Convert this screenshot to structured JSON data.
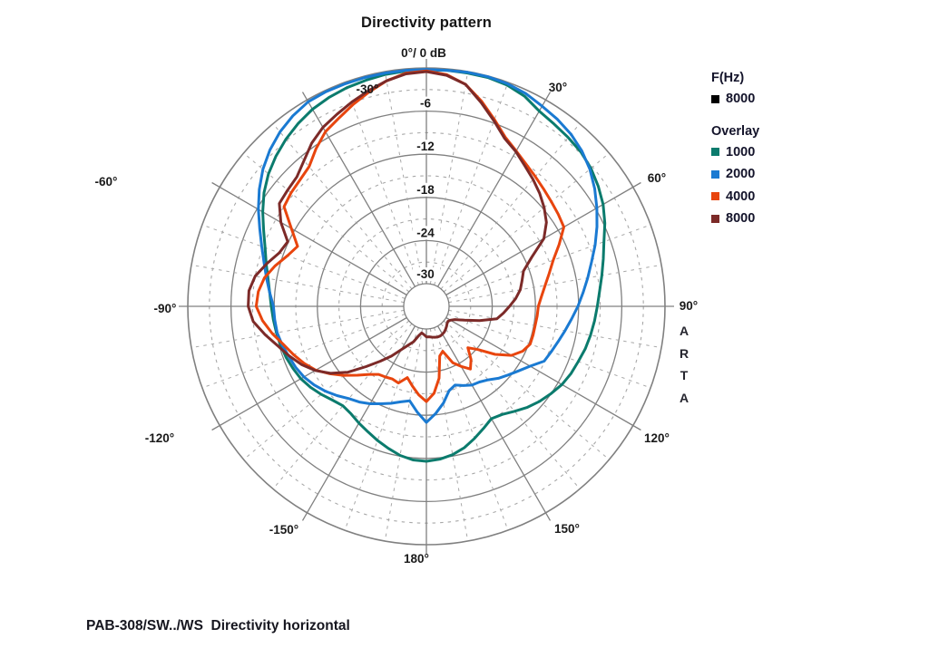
{
  "title": "Directivity pattern",
  "caption": "PAB-308/SW../WS  Directivity horizontal",
  "watermark": {
    "letters": [
      "A",
      "R",
      "T",
      "A"
    ]
  },
  "legend": {
    "freq_header": "F(Hz)",
    "freq_items": [
      {
        "label": "8000",
        "color": "#000000"
      }
    ],
    "overlay_header": "Overlay",
    "overlay_items": [
      {
        "label": "1000",
        "color": "#0b7b6d"
      },
      {
        "label": "2000",
        "color": "#1a7ad2"
      },
      {
        "label": "4000",
        "color": "#e8450e"
      },
      {
        "label": "8000",
        "color": "#7c2a28"
      }
    ]
  },
  "chart_data": {
    "type": "line",
    "projection": "polar",
    "title": "Directivity pattern",
    "top_label": "0°/ 0 dB",
    "units": "dB",
    "r_axis": {
      "max_db": 0,
      "min_db": -30,
      "solid_ring_step_db": 6,
      "dashed_ring_step_db": 3
    },
    "angle_grid": {
      "solid_step_deg": 30,
      "dashed_step_deg": 10
    },
    "radial_tick_labels": [
      {
        "db": -6,
        "label": "-6"
      },
      {
        "db": -12,
        "label": "-12"
      },
      {
        "db": -18,
        "label": "-18"
      },
      {
        "db": -24,
        "label": "-24"
      },
      {
        "db": -30,
        "label": "-30"
      }
    ],
    "angle_tick_labels": [
      {
        "angle": 0,
        "label": "0°/ 0 dB"
      },
      {
        "angle": 30,
        "label": "30°"
      },
      {
        "angle": 60,
        "label": "60°"
      },
      {
        "angle": 90,
        "label": "90°"
      },
      {
        "angle": 120,
        "label": "120°"
      },
      {
        "angle": 150,
        "label": "150°"
      },
      {
        "angle": 180,
        "label": "180°"
      },
      {
        "angle": -150,
        "label": "-150°"
      },
      {
        "angle": -120,
        "label": "-120°"
      },
      {
        "angle": -90,
        "label": "-90°"
      },
      {
        "angle": -60,
        "label": "-60°"
      },
      {
        "angle": -30,
        "label": "-30°"
      }
    ],
    "grid_colors": {
      "solid": "#808080",
      "dashed": "#a8a8a8"
    },
    "angles_deg": [
      -180,
      -175,
      -170,
      -165,
      -160,
      -155,
      -150,
      -145,
      -140,
      -135,
      -130,
      -125,
      -120,
      -115,
      -110,
      -105,
      -100,
      -95,
      -90,
      -85,
      -80,
      -75,
      -70,
      -65,
      -60,
      -55,
      -50,
      -45,
      -40,
      -35,
      -30,
      -25,
      -20,
      -15,
      -10,
      -5,
      0,
      5,
      10,
      15,
      20,
      25,
      30,
      35,
      40,
      45,
      50,
      55,
      60,
      65,
      70,
      75,
      80,
      85,
      90,
      95,
      100,
      105,
      110,
      115,
      120,
      125,
      130,
      135,
      140,
      145,
      150,
      155,
      160,
      165,
      170,
      175,
      180
    ],
    "series": [
      {
        "name": "1000",
        "color": "#0b7b6d",
        "values": [
          -11.6,
          -11.7,
          -12.1,
          -12.7,
          -13.3,
          -13.9,
          -14.4,
          -14.9,
          -15.1,
          -14.7,
          -14.1,
          -13.5,
          -13.0,
          -12.7,
          -12.4,
          -12.2,
          -12.0,
          -11.8,
          -11.6,
          -11.3,
          -10.8,
          -10.1,
          -9.3,
          -8.2,
          -6.9,
          -5.6,
          -4.5,
          -3.6,
          -2.8,
          -2.1,
          -1.5,
          -1.1,
          -0.8,
          -0.6,
          -0.4,
          -0.3,
          -0.3,
          -0.2,
          -0.2,
          -0.2,
          -0.4,
          -0.9,
          -1.8,
          -2.2,
          -2.5,
          -2.8,
          -3.3,
          -4.0,
          -4.8,
          -5.8,
          -6.9,
          -7.7,
          -8.4,
          -9.0,
          -9.4,
          -9.7,
          -10.0,
          -10.3,
          -10.7,
          -11.0,
          -11.4,
          -12.0,
          -12.6,
          -13.3,
          -14.1,
          -14.8,
          -15.1,
          -14.4,
          -13.6,
          -12.8,
          -12.2,
          -11.8,
          -11.6
        ]
      },
      {
        "name": "2000",
        "color": "#1a7ad2",
        "values": [
          -17.0,
          -18.4,
          -19.8,
          -19.4,
          -18.8,
          -18.2,
          -17.5,
          -16.9,
          -16.4,
          -15.6,
          -14.8,
          -14.1,
          -13.5,
          -13.1,
          -12.8,
          -12.4,
          -12.1,
          -12.0,
          -11.9,
          -11.3,
          -10.6,
          -9.8,
          -8.8,
          -7.6,
          -6.2,
          -4.8,
          -3.5,
          -2.4,
          -1.5,
          -0.8,
          -0.3,
          -0.2,
          -0.2,
          -0.2,
          -0.2,
          -0.2,
          -0.2,
          -0.2,
          -0.1,
          -0.1,
          -0.2,
          -0.5,
          -1.0,
          -1.4,
          -1.9,
          -2.6,
          -3.5,
          -4.6,
          -5.8,
          -7.0,
          -8.2,
          -9.4,
          -10.4,
          -11.3,
          -12.1,
          -12.9,
          -13.6,
          -14.2,
          -14.7,
          -15.1,
          -16.5,
          -17.5,
          -18.3,
          -19.0,
          -19.8,
          -20.3,
          -20.5,
          -21.0,
          -21.5,
          -21.0,
          -19.5,
          -18.2,
          -17.0
        ]
      },
      {
        "name": "4000",
        "color": "#e8450e",
        "values": [
          -19.9,
          -20.8,
          -21.9,
          -22.9,
          -21.8,
          -22.0,
          -21.8,
          -21.6,
          -20.8,
          -19.6,
          -18.2,
          -16.8,
          -15.4,
          -14.4,
          -13.5,
          -12.6,
          -11.4,
          -10.3,
          -9.5,
          -9.7,
          -10.3,
          -11.4,
          -12.6,
          -13.4,
          -11.5,
          -9.0,
          -8.6,
          -8.3,
          -7.8,
          -6.4,
          -5.1,
          -4.3,
          -3.3,
          -2.3,
          -1.3,
          -0.6,
          -0.4,
          -0.8,
          -1.8,
          -3.6,
          -5.5,
          -7.2,
          -8.2,
          -9.0,
          -9.6,
          -10.1,
          -10.5,
          -10.8,
          -11.1,
          -12.8,
          -14.4,
          -15.5,
          -16.4,
          -17.1,
          -17.6,
          -17.7,
          -17.8,
          -17.8,
          -17.8,
          -18.4,
          -19.5,
          -21.5,
          -23.8,
          -25.0,
          -23.5,
          -22.5,
          -23.5,
          -24.5,
          -26.5,
          -26.0,
          -23.0,
          -21.0,
          -19.9
        ]
      },
      {
        "name": "8000",
        "color": "#7c2a28",
        "values": [
          -28.9,
          -29.2,
          -29.4,
          -28.9,
          -27.9,
          -27.2,
          -26.2,
          -24.7,
          -23.2,
          -21.3,
          -18.9,
          -16.9,
          -15.3,
          -14.0,
          -12.9,
          -11.8,
          -10.4,
          -9.0,
          -8.4,
          -8.4,
          -9.0,
          -10.2,
          -11.4,
          -11.9,
          -9.8,
          -8.2,
          -8.0,
          -7.7,
          -6.7,
          -5.4,
          -4.4,
          -3.7,
          -2.9,
          -2.1,
          -1.3,
          -0.7,
          -0.5,
          -0.9,
          -1.8,
          -3.8,
          -5.7,
          -7.4,
          -8.3,
          -9.3,
          -10.1,
          -10.9,
          -11.8,
          -12.8,
          -14.3,
          -17.0,
          -18.8,
          -19.4,
          -19.9,
          -20.7,
          -21.6,
          -22.4,
          -23.2,
          -25.5,
          -27.5,
          -28.8,
          -29.3,
          -29.5,
          -29.4,
          -29.2,
          -29.0,
          -28.8,
          -28.7,
          -28.6,
          -28.6,
          -28.7,
          -28.8,
          -28.9,
          -28.9
        ]
      }
    ]
  }
}
